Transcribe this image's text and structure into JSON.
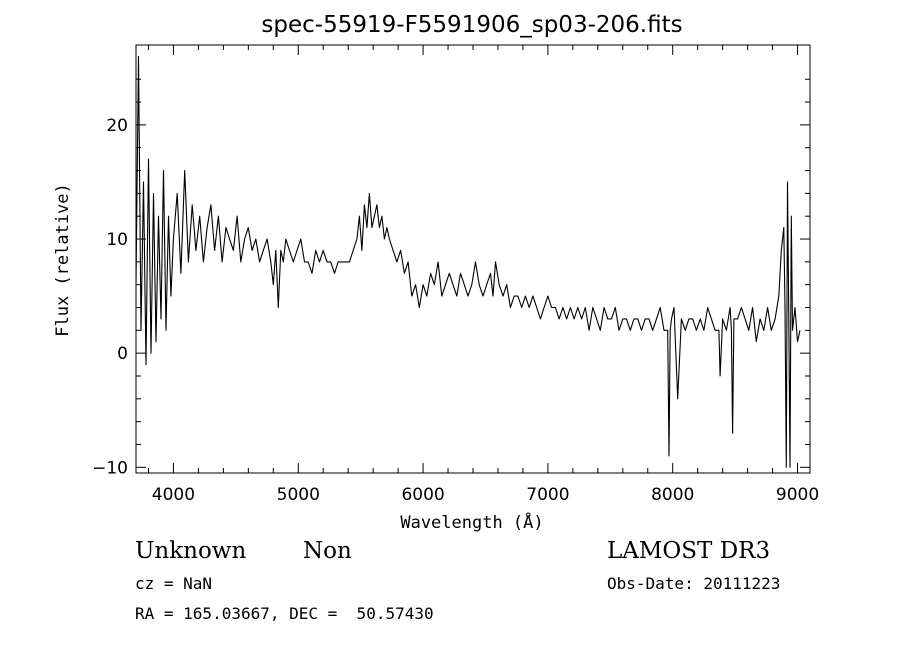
{
  "chart_data": {
    "type": "line",
    "title": "spec-55919-F5591906_sp03-206.fits",
    "xlabel": "Wavelength (Å)",
    "ylabel": "Flux (relative)",
    "xlim": [
      3700,
      9100
    ],
    "ylim": [
      -10.5,
      27
    ],
    "xticks": [
      4000,
      5000,
      6000,
      7000,
      8000,
      9000
    ],
    "yticks": [
      -10,
      0,
      10,
      20
    ],
    "grid": false,
    "series": [
      {
        "x": [
          3700,
          3720,
          3740,
          3760,
          3780,
          3800,
          3820,
          3840,
          3860,
          3880,
          3900,
          3920,
          3940,
          3960,
          3980,
          4000,
          4030,
          4060,
          4090,
          4120,
          4150,
          4180,
          4210,
          4240,
          4270,
          4300,
          4330,
          4360,
          4390,
          4420,
          4450,
          4480,
          4510,
          4540,
          4570,
          4600,
          4630,
          4660,
          4690,
          4720,
          4750,
          4780,
          4800,
          4820,
          4840,
          4860,
          4880,
          4900,
          4930,
          4960,
          4990,
          5020,
          5050,
          5080,
          5110,
          5140,
          5170,
          5200,
          5230,
          5260,
          5290,
          5320,
          5350,
          5380,
          5410,
          5440,
          5470,
          5490,
          5510,
          5530,
          5550,
          5570,
          5590,
          5610,
          5630,
          5650,
          5670,
          5690,
          5710,
          5730,
          5760,
          5790,
          5820,
          5850,
          5880,
          5910,
          5940,
          5970,
          6000,
          6030,
          6060,
          6090,
          6120,
          6150,
          6180,
          6210,
          6240,
          6270,
          6300,
          6330,
          6360,
          6390,
          6420,
          6450,
          6480,
          6510,
          6540,
          6560,
          6580,
          6610,
          6640,
          6670,
          6700,
          6730,
          6760,
          6790,
          6820,
          6850,
          6880,
          6910,
          6940,
          6970,
          7000,
          7030,
          7060,
          7090,
          7120,
          7150,
          7180,
          7210,
          7240,
          7270,
          7300,
          7330,
          7360,
          7390,
          7420,
          7450,
          7480,
          7510,
          7540,
          7570,
          7600,
          7630,
          7660,
          7690,
          7720,
          7750,
          7780,
          7810,
          7840,
          7870,
          7900,
          7930,
          7960,
          7970,
          7980,
          7990,
          8010,
          8040,
          8070,
          8100,
          8130,
          8160,
          8190,
          8220,
          8250,
          8280,
          8310,
          8340,
          8370,
          8380,
          8400,
          8430,
          8460,
          8470,
          8480,
          8490,
          8520,
          8550,
          8580,
          8610,
          8640,
          8670,
          8700,
          8730,
          8760,
          8790,
          8820,
          8850,
          8870,
          8890,
          8900,
          8910,
          8920,
          8930,
          8940,
          8950,
          8960,
          8980,
          9000,
          9020
        ],
        "y": [
          6,
          26,
          2,
          15,
          -1,
          17,
          0,
          14,
          1,
          12,
          3,
          16,
          2,
          12,
          5,
          10,
          14,
          7,
          16,
          8,
          13,
          9,
          12,
          8,
          11,
          13,
          9,
          12,
          8,
          11,
          10,
          9,
          12,
          8,
          10,
          11,
          9,
          10,
          8,
          9,
          10,
          8,
          6,
          9,
          4,
          9,
          8,
          10,
          9,
          8,
          9,
          10,
          8,
          8,
          7,
          9,
          8,
          9,
          8,
          8,
          7,
          8,
          8,
          8,
          8,
          9,
          10,
          12,
          9,
          13,
          11,
          14,
          11,
          12,
          13,
          11,
          12,
          10,
          11,
          10,
          9,
          8,
          9,
          7,
          8,
          5,
          6,
          4,
          6,
          5,
          7,
          6,
          8,
          5,
          6,
          7,
          6,
          5,
          7,
          6,
          5,
          6,
          8,
          6,
          5,
          6,
          7,
          5,
          8,
          6,
          5,
          6,
          4,
          5,
          5,
          4,
          5,
          4,
          5,
          4,
          3,
          4,
          5,
          4,
          4,
          3,
          4,
          3,
          4,
          3,
          4,
          3,
          4,
          2,
          4,
          3,
          2,
          4,
          3,
          3,
          4,
          2,
          3,
          3,
          2,
          3,
          3,
          2,
          3,
          3,
          2,
          3,
          4,
          2,
          2,
          -9,
          2,
          3,
          4,
          -4,
          3,
          2,
          3,
          3,
          2,
          3,
          2,
          4,
          3,
          2,
          2,
          -2,
          3,
          2,
          4,
          2,
          -7,
          3,
          3,
          4,
          3,
          2,
          4,
          1,
          3,
          2,
          4,
          2,
          3,
          5,
          9,
          11,
          4,
          -10,
          15,
          3,
          -10,
          12,
          2,
          4,
          1,
          2
        ]
      }
    ]
  },
  "info": {
    "class_name": "Unknown",
    "subclass": "Non",
    "survey": "LAMOST DR3",
    "cz": "cz = NaN",
    "obs_date": "Obs-Date: 20111223",
    "coords": "RA = 165.03667, DEC =  50.57430"
  }
}
